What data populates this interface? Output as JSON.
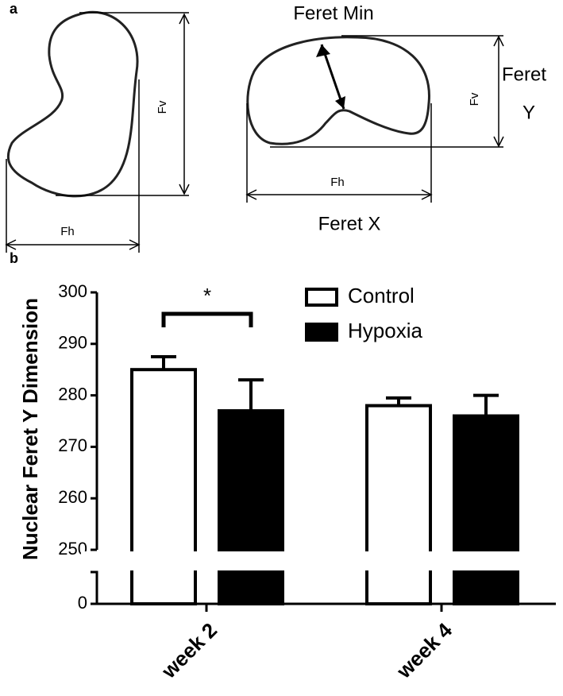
{
  "diagram": {
    "panel_a": "a",
    "panel_b": "b",
    "feret_min": "Feret Min",
    "feret_y_lines": [
      "Feret",
      "Y"
    ],
    "feret_x": "Feret X",
    "left_fv": "Fv",
    "left_fh": "Fh",
    "right_fv": "Fv",
    "right_fh": "Fh"
  },
  "chart_data": {
    "type": "bar",
    "ylabel": "Nuclear Feret Y Dimension",
    "categories": [
      "week 2",
      "week 4"
    ],
    "series": [
      {
        "name": "Control",
        "color": "#ffffff",
        "values": [
          285,
          278
        ],
        "errors": [
          2.5,
          1.5
        ]
      },
      {
        "name": "Hypoxia",
        "color": "#000000",
        "values": [
          277,
          276
        ],
        "errors": [
          6,
          4
        ]
      }
    ],
    "ylim": [
      250,
      300
    ],
    "yticks": [
      250,
      260,
      270,
      280,
      290,
      300
    ],
    "axis_break": true,
    "yticks_lower": [
      0
    ],
    "annotations": [
      {
        "text": "*"
      }
    ],
    "legend": "upper right"
  }
}
